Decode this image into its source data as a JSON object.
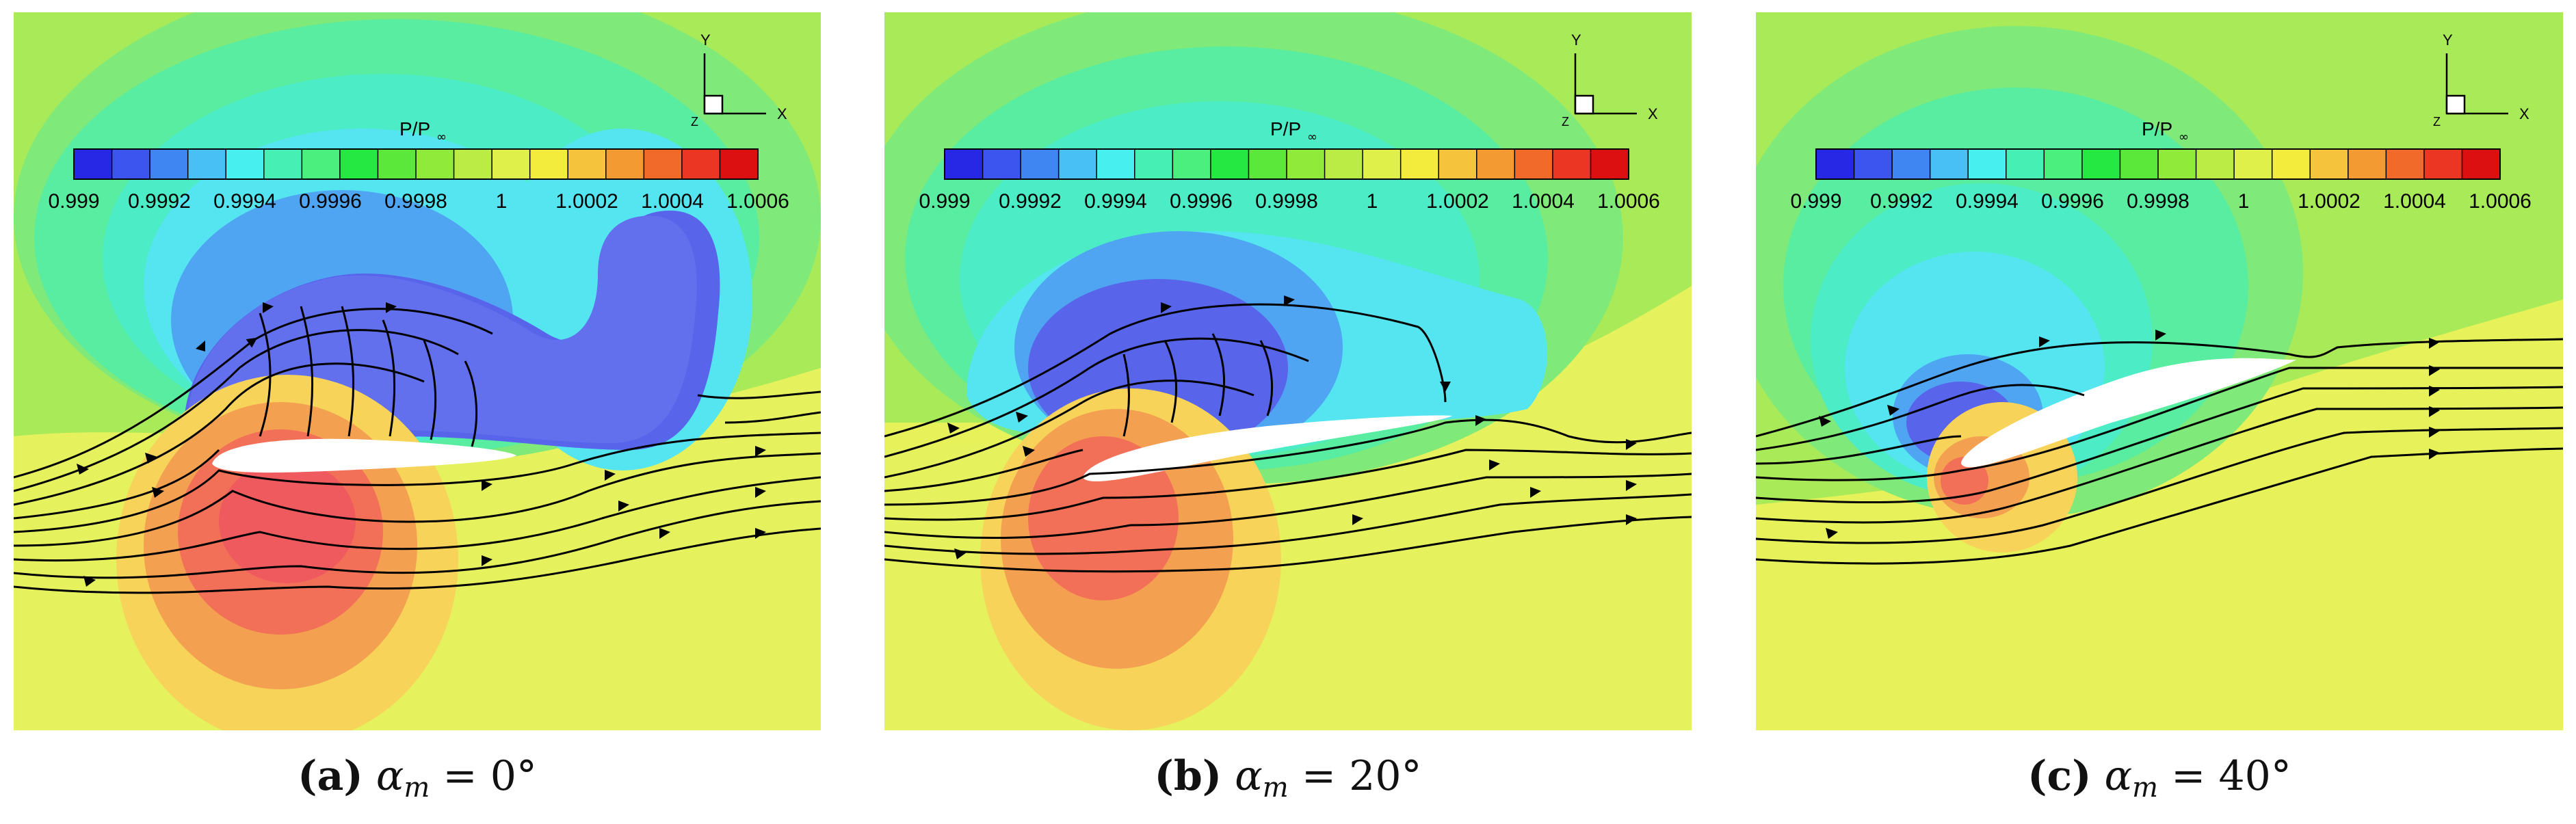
{
  "figure": {
    "colorbar": {
      "title": "P/P",
      "title_sub": "∞",
      "ticks": [
        "0.999",
        "0.9992",
        "0.9994",
        "0.9996",
        "0.9998",
        "1",
        "1.0002",
        "1.0004",
        "1.0006"
      ],
      "colors": [
        "#2727e6",
        "#3b55ee",
        "#3f86f3",
        "#48c0f6",
        "#48efef",
        "#46f0b4",
        "#4bef7d",
        "#26e843",
        "#5be83a",
        "#8fea3a",
        "#bbec45",
        "#dff04a",
        "#f3ec3c",
        "#f6c33c",
        "#f39a33",
        "#f26a2a",
        "#ec3624",
        "#dc1010"
      ]
    },
    "axes_labels": {
      "x": "X",
      "y": "Y",
      "z": "Z"
    },
    "panels": [
      {
        "label": "(a)",
        "symbol": "α",
        "subscript": "m",
        "equals": "=",
        "value": "0°"
      },
      {
        "label": "(b)",
        "symbol": "α",
        "subscript": "m",
        "equals": "=",
        "value": "20°"
      },
      {
        "label": "(c)",
        "symbol": "α",
        "subscript": "m",
        "equals": "=",
        "value": "40°"
      }
    ]
  }
}
